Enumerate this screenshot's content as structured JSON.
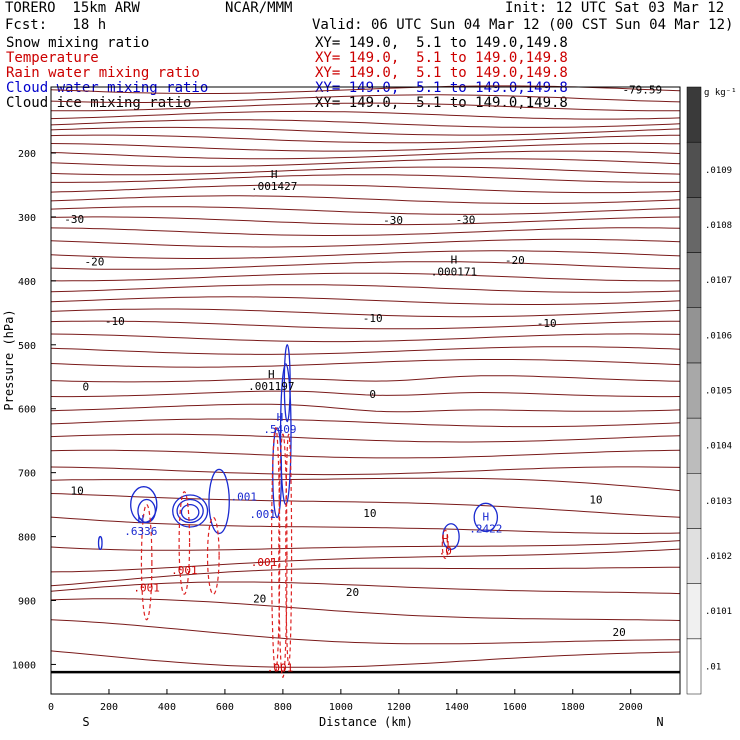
{
  "header": {
    "model": "TORERO  15km ARW",
    "center": "NCAR/MMM",
    "init": "Init: 12 UTC Sat 03 Mar 12",
    "fcst": "Fcst:   18 h",
    "valid": "Valid: 06 UTC Sun 04 Mar 12 (00 CST Sun 04 Mar 12)"
  },
  "fields": [
    {
      "name": "Snow mixing ratio",
      "xy": "XY= 149.0,  5.1 to 149.0,149.8",
      "color": "#000000"
    },
    {
      "name": "Temperature",
      "xy": "XY= 149.0,  5.1 to 149.0,149.8",
      "color": "#cc0000"
    },
    {
      "name": "Rain water mixing ratio",
      "xy": "XY= 149.0,  5.1 to 149.0,149.8",
      "color": "#cc0000"
    },
    {
      "name": "Cloud water mixing ratio",
      "xy": "XY= 149.0,  5.1 to 149.0,149.8",
      "color": "#0000cc"
    },
    {
      "name": "Cloud ice mixing ratio",
      "xy": "XY= 149.0,  5.1 to 149.0,149.8",
      "color": "#000000"
    }
  ],
  "colors": {
    "temperature": "#7a1a1a",
    "rain": "#dd2222",
    "cloud_water": "#1a2ad0",
    "ice": "#000000",
    "frame": "#000000"
  },
  "chart_data": {
    "type": "contour-cross-section",
    "xlabel": "Distance (km)",
    "ylabel": "Pressure (hPa)",
    "xlim": [
      0,
      2170
    ],
    "ylim": [
      1050,
      90
    ],
    "x_ticks": [
      0,
      200,
      400,
      600,
      800,
      1000,
      1200,
      1400,
      1600,
      1800,
      2000
    ],
    "y_ticks": [
      200,
      300,
      400,
      500,
      600,
      700,
      800,
      900,
      1000
    ],
    "ends": {
      "left": "S",
      "right": "N"
    },
    "colorbar": {
      "unit": "g kg⁻¹",
      "labels": [
        ".01",
        ".0101",
        ".0102",
        ".0103",
        ".0104",
        ".0105",
        ".0106",
        ".0107",
        ".0108",
        ".0109"
      ],
      "colors": [
        "#ffffff",
        "#f0f0f0",
        "#e0e0e0",
        "#cfcfcf",
        "#bcbcbc",
        "#a8a8a8",
        "#939393",
        "#7d7d7d",
        "#676767",
        "#505050",
        "#3a3a3a"
      ]
    },
    "temperature_labels": [
      {
        "text": "-79.59",
        "x": 2040,
        "p": 101
      },
      {
        "text": "-30",
        "x": 80,
        "p": 303
      },
      {
        "text": "-30",
        "x": 1180,
        "p": 305
      },
      {
        "text": "-30",
        "x": 1430,
        "p": 304
      },
      {
        "text": "-20",
        "x": 150,
        "p": 370
      },
      {
        "text": "-20",
        "x": 1600,
        "p": 367
      },
      {
        "text": "-10",
        "x": 220,
        "p": 463
      },
      {
        "text": "-10",
        "x": 1110,
        "p": 458
      },
      {
        "text": "-10",
        "x": 1710,
        "p": 466
      },
      {
        "text": "0",
        "x": 120,
        "p": 565
      },
      {
        "text": "0",
        "x": 1110,
        "p": 577
      },
      {
        "text": "10",
        "x": 90,
        "p": 728
      },
      {
        "text": "10",
        "x": 1100,
        "p": 763
      },
      {
        "text": "10",
        "x": 1880,
        "p": 742
      },
      {
        "text": "20",
        "x": 720,
        "p": 897
      },
      {
        "text": "20",
        "x": 1040,
        "p": 887
      },
      {
        "text": "20",
        "x": 1960,
        "p": 949
      }
    ],
    "extrema": [
      {
        "marker": "H",
        "value": ".001427",
        "x": 770,
        "p": 242,
        "color": "#000000"
      },
      {
        "marker": "H",
        "value": ".000171",
        "x": 1390,
        "p": 376,
        "color": "#000000"
      },
      {
        "marker": "H",
        "value": ".001197",
        "x": 760,
        "p": 555,
        "color": "#000000"
      },
      {
        "marker": "H",
        "value": ".5409",
        "x": 790,
        "p": 622,
        "color": "#1a2ad0"
      },
      {
        "marker": "H",
        "value": ".6336",
        "x": 310,
        "p": 782,
        "color": "#1a2ad0"
      },
      {
        "marker": "H",
        "value": ".2422",
        "x": 1500,
        "p": 778,
        "color": "#1a2ad0"
      },
      {
        "marker": "H",
        "value": ".0",
        "x": 1360,
        "p": 812,
        "color": "#cc0000"
      }
    ],
    "contour_labels": [
      {
        "text": ".001",
        "x": 665,
        "p": 737,
        "color": "#1a2ad0"
      },
      {
        "text": ".001",
        "x": 730,
        "p": 765,
        "color": "#1a2ad0"
      },
      {
        "text": ".001",
        "x": 330,
        "p": 880,
        "color": "#cc0000"
      },
      {
        "text": ".001",
        "x": 460,
        "p": 852,
        "color": "#cc0000"
      },
      {
        "text": ".001",
        "x": 735,
        "p": 840,
        "color": "#cc0000"
      },
      {
        "text": ".001",
        "x": 790,
        "p": 1005,
        "color": "#cc0000"
      }
    ]
  }
}
